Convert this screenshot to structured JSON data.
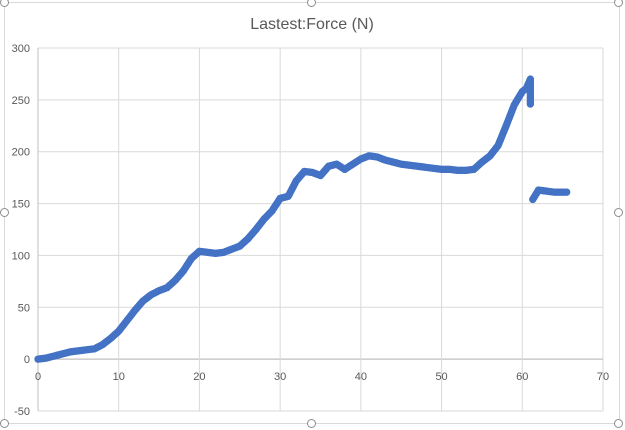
{
  "chart_data": {
    "type": "scatter",
    "title": "Lastest:Force (N)",
    "xlabel": "",
    "ylabel": "",
    "xlim": [
      0,
      70
    ],
    "ylim": [
      -50,
      300
    ],
    "x_ticks": [
      0,
      10,
      20,
      30,
      40,
      50,
      60,
      70
    ],
    "y_ticks": [
      -50,
      0,
      50,
      100,
      150,
      200,
      250,
      300
    ],
    "grid": true,
    "legend": "none",
    "marker_color": "#4472c4",
    "series": [
      {
        "points": [
          [
            0,
            0
          ],
          [
            1,
            1
          ],
          [
            2,
            3
          ],
          [
            3,
            5
          ],
          [
            4,
            7
          ],
          [
            5,
            8
          ],
          [
            6,
            9
          ],
          [
            7,
            10
          ],
          [
            8,
            14
          ],
          [
            9,
            20
          ],
          [
            10,
            27
          ],
          [
            11,
            37
          ],
          [
            12,
            47
          ],
          [
            13,
            56
          ],
          [
            14,
            62
          ],
          [
            15,
            66
          ],
          [
            16,
            69
          ],
          [
            17,
            76
          ],
          [
            18,
            85
          ],
          [
            19,
            97
          ],
          [
            20,
            104
          ],
          [
            21,
            103
          ],
          [
            22,
            102
          ],
          [
            23,
            103
          ],
          [
            24,
            106
          ],
          [
            25,
            109
          ],
          [
            26,
            116
          ],
          [
            27,
            125
          ],
          [
            28,
            135
          ],
          [
            29,
            143
          ],
          [
            30,
            155
          ],
          [
            31,
            157
          ],
          [
            32,
            172
          ],
          [
            33,
            181
          ],
          [
            34,
            180
          ],
          [
            35,
            177
          ],
          [
            36,
            186
          ],
          [
            37,
            188
          ],
          [
            38,
            183
          ],
          [
            39,
            188
          ],
          [
            40,
            193
          ],
          [
            41,
            196
          ],
          [
            42,
            195
          ],
          [
            43,
            192
          ],
          [
            44,
            190
          ],
          [
            45,
            188
          ],
          [
            46,
            187
          ],
          [
            47,
            186
          ],
          [
            48,
            185
          ],
          [
            49,
            184
          ],
          [
            50,
            183
          ],
          [
            51,
            183
          ],
          [
            52,
            182
          ],
          [
            53,
            182
          ],
          [
            54,
            183
          ],
          [
            55,
            190
          ],
          [
            56,
            196
          ],
          [
            57,
            206
          ],
          [
            58,
            225
          ],
          [
            59,
            245
          ],
          [
            60,
            258
          ],
          [
            60.5,
            261
          ],
          [
            61,
            270
          ],
          [
            61,
            246
          ],
          [
            61.3,
            154
          ],
          [
            62,
            163
          ],
          [
            63,
            162
          ],
          [
            64,
            161
          ],
          [
            65,
            161
          ],
          [
            65.5,
            161
          ]
        ]
      }
    ]
  }
}
